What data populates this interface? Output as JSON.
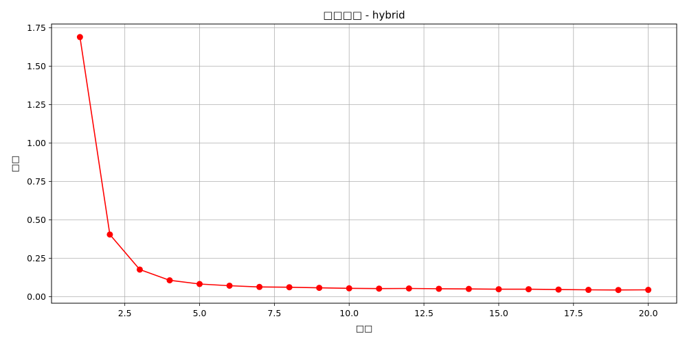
{
  "chart_data": {
    "type": "line",
    "title": "□□□□ - hybrid",
    "xlabel": "□□",
    "ylabel": "□□",
    "xlim": [
      0.05,
      20.95
    ],
    "ylim": [
      -0.042,
      1.775
    ],
    "x_ticks": [
      2.5,
      5.0,
      7.5,
      10.0,
      12.5,
      15.0,
      17.5,
      20.0
    ],
    "x_tick_labels": [
      "2.5",
      "5.0",
      "7.5",
      "10.0",
      "12.5",
      "15.0",
      "17.5",
      "20.0"
    ],
    "y_ticks": [
      0.0,
      0.25,
      0.5,
      0.75,
      1.0,
      1.25,
      1.5,
      1.75
    ],
    "y_tick_labels": [
      "0.00",
      "0.25",
      "0.50",
      "0.75",
      "1.00",
      "1.25",
      "1.50",
      "1.75"
    ],
    "grid": true,
    "series": [
      {
        "color": "#ff0000",
        "marker": "circle",
        "x": [
          1,
          2,
          3,
          4,
          5,
          6,
          7,
          8,
          9,
          10,
          11,
          12,
          13,
          14,
          15,
          16,
          17,
          18,
          19,
          20
        ],
        "values": [
          1.69,
          0.405,
          0.177,
          0.107,
          0.083,
          0.072,
          0.064,
          0.062,
          0.058,
          0.055,
          0.053,
          0.054,
          0.052,
          0.051,
          0.049,
          0.049,
          0.047,
          0.045,
          0.044,
          0.045
        ]
      }
    ]
  }
}
